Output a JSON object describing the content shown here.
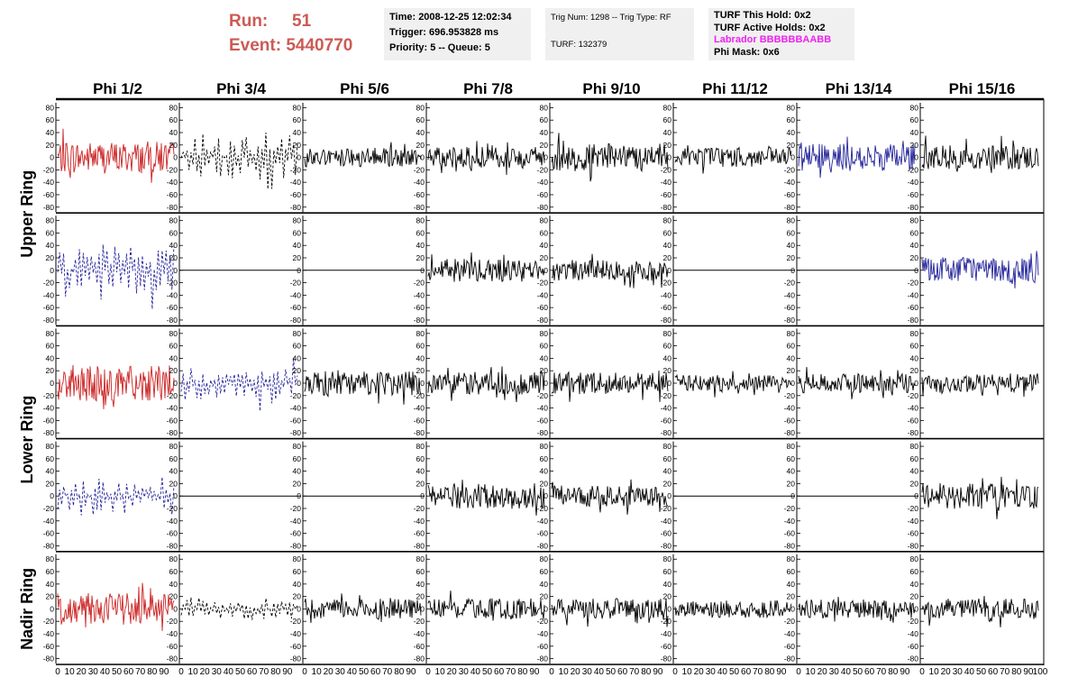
{
  "header": {
    "run_label": "Run:",
    "run_value": "51",
    "event_label": "Event:",
    "event_value": "5440770",
    "time": "Time: 2008-12-25 12:02:34",
    "trigger": "Trigger: 696.953828 ms",
    "priority": "Priority: 5 -- Queue: 5",
    "trig_num": "Trig Num: 1298 -- Trig Type: RF",
    "turf": "TURF: 132379",
    "turf_this_hold": "TURF This Hold: 0x2",
    "turf_active_holds": "TURF Active Holds: 0x2",
    "labrador": "Labrador BBBBBBAABB",
    "phi_mask": "Phi Mask: 0x6"
  },
  "colors": {
    "red": "#cc2222",
    "blue": "#22229a",
    "black": "#000000",
    "run_text": "#cc5a55",
    "labrador": "#ee22ee"
  },
  "chart_data": {
    "type": "line",
    "columns": [
      "Phi 1/2",
      "Phi 3/4",
      "Phi 5/6",
      "Phi 7/8",
      "Phi 9/10",
      "Phi 11/12",
      "Phi 13/14",
      "Phi 15/16"
    ],
    "ring_labels": [
      "Upper Ring",
      "Lower Ring",
      "Nadir Ring"
    ],
    "y_ticks": [
      "80",
      "60",
      "40",
      "20",
      "0",
      "-20",
      "-40",
      "-60",
      "-80"
    ],
    "x_ticks": [
      "0",
      "10",
      "20",
      "30",
      "40",
      "50",
      "60",
      "70",
      "80",
      "90",
      "100"
    ],
    "ylim": [
      -85,
      85
    ],
    "xlim": [
      0,
      100
    ],
    "rows": [
      [
        {
          "color": "red",
          "style": "solid",
          "amp": 20
        },
        {
          "color": "black",
          "style": "dashed",
          "amp": 26
        },
        {
          "color": "black",
          "style": "solid",
          "amp": 12
        },
        {
          "color": "black",
          "style": "solid",
          "amp": 13
        },
        {
          "color": "black",
          "style": "solid",
          "amp": 17
        },
        {
          "color": "black",
          "style": "solid",
          "amp": 12
        },
        {
          "color": "blue",
          "style": "solid",
          "amp": 17
        },
        {
          "color": "black",
          "style": "solid",
          "amp": 15
        }
      ],
      [
        {
          "color": "blue",
          "style": "dashed",
          "amp": 30
        },
        {
          "color": "black",
          "style": "flat",
          "amp": 0
        },
        {
          "color": "black",
          "style": "flat",
          "amp": 0
        },
        {
          "color": "black",
          "style": "solid",
          "amp": 14
        },
        {
          "color": "black",
          "style": "solid",
          "amp": 13
        },
        {
          "color": "black",
          "style": "flat",
          "amp": 0
        },
        {
          "color": "black",
          "style": "flat",
          "amp": 0
        },
        {
          "color": "blue",
          "style": "solid",
          "amp": 16
        }
      ],
      [
        {
          "color": "red",
          "style": "solid",
          "amp": 22
        },
        {
          "color": "blue",
          "style": "dashed",
          "amp": 20
        },
        {
          "color": "black",
          "style": "solid",
          "amp": 15
        },
        {
          "color": "black",
          "style": "solid",
          "amp": 14
        },
        {
          "color": "black",
          "style": "solid",
          "amp": 13
        },
        {
          "color": "black",
          "style": "solid",
          "amp": 10
        },
        {
          "color": "black",
          "style": "solid",
          "amp": 12
        },
        {
          "color": "black",
          "style": "solid",
          "amp": 12
        }
      ],
      [
        {
          "color": "blue",
          "style": "dashed",
          "amp": 24
        },
        {
          "color": "black",
          "style": "flat",
          "amp": 0
        },
        {
          "color": "black",
          "style": "flat",
          "amp": 0
        },
        {
          "color": "black",
          "style": "solid",
          "amp": 16
        },
        {
          "color": "black",
          "style": "solid",
          "amp": 13
        },
        {
          "color": "black",
          "style": "flat",
          "amp": 0
        },
        {
          "color": "black",
          "style": "flat",
          "amp": 0
        },
        {
          "color": "black",
          "style": "solid",
          "amp": 16
        }
      ],
      [
        {
          "color": "red",
          "style": "solid",
          "amp": 20
        },
        {
          "color": "black",
          "style": "dashed",
          "amp": 14
        },
        {
          "color": "black",
          "style": "solid",
          "amp": 12
        },
        {
          "color": "black",
          "style": "solid",
          "amp": 13
        },
        {
          "color": "black",
          "style": "solid",
          "amp": 13
        },
        {
          "color": "black",
          "style": "solid",
          "amp": 11
        },
        {
          "color": "black",
          "style": "solid",
          "amp": 12
        },
        {
          "color": "black",
          "style": "solid",
          "amp": 13
        }
      ]
    ]
  }
}
